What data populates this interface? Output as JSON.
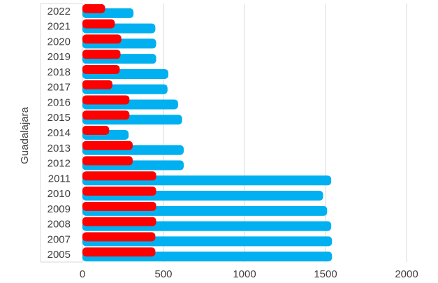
{
  "chart_data": {
    "type": "bar",
    "orientation": "horizontal",
    "group_label": "Guadalajara",
    "categories": [
      "2022",
      "2021",
      "2020",
      "2019",
      "2018",
      "2017",
      "2016",
      "2015",
      "2014",
      "2013",
      "2012",
      "2011",
      "2010",
      "2009",
      "2008",
      "2007",
      "2005"
    ],
    "series": [
      {
        "color": "#00B0F0",
        "values": [
          315,
          450,
          455,
          455,
          530,
          525,
          590,
          615,
          285,
          625,
          625,
          1535,
          1485,
          1510,
          1535,
          1540,
          1540
        ]
      },
      {
        "color": "#FF0000",
        "values": [
          140,
          200,
          240,
          235,
          230,
          185,
          290,
          290,
          165,
          310,
          310,
          455,
          455,
          455,
          455,
          450,
          450
        ]
      }
    ],
    "xlim": [
      0,
      2000
    ],
    "xticks": [
      0,
      500,
      1000,
      1500,
      2000
    ],
    "grid": "vertical",
    "legend": "none",
    "colors": {
      "grid": "#D9D9D9",
      "axis_text": "#404040"
    }
  }
}
